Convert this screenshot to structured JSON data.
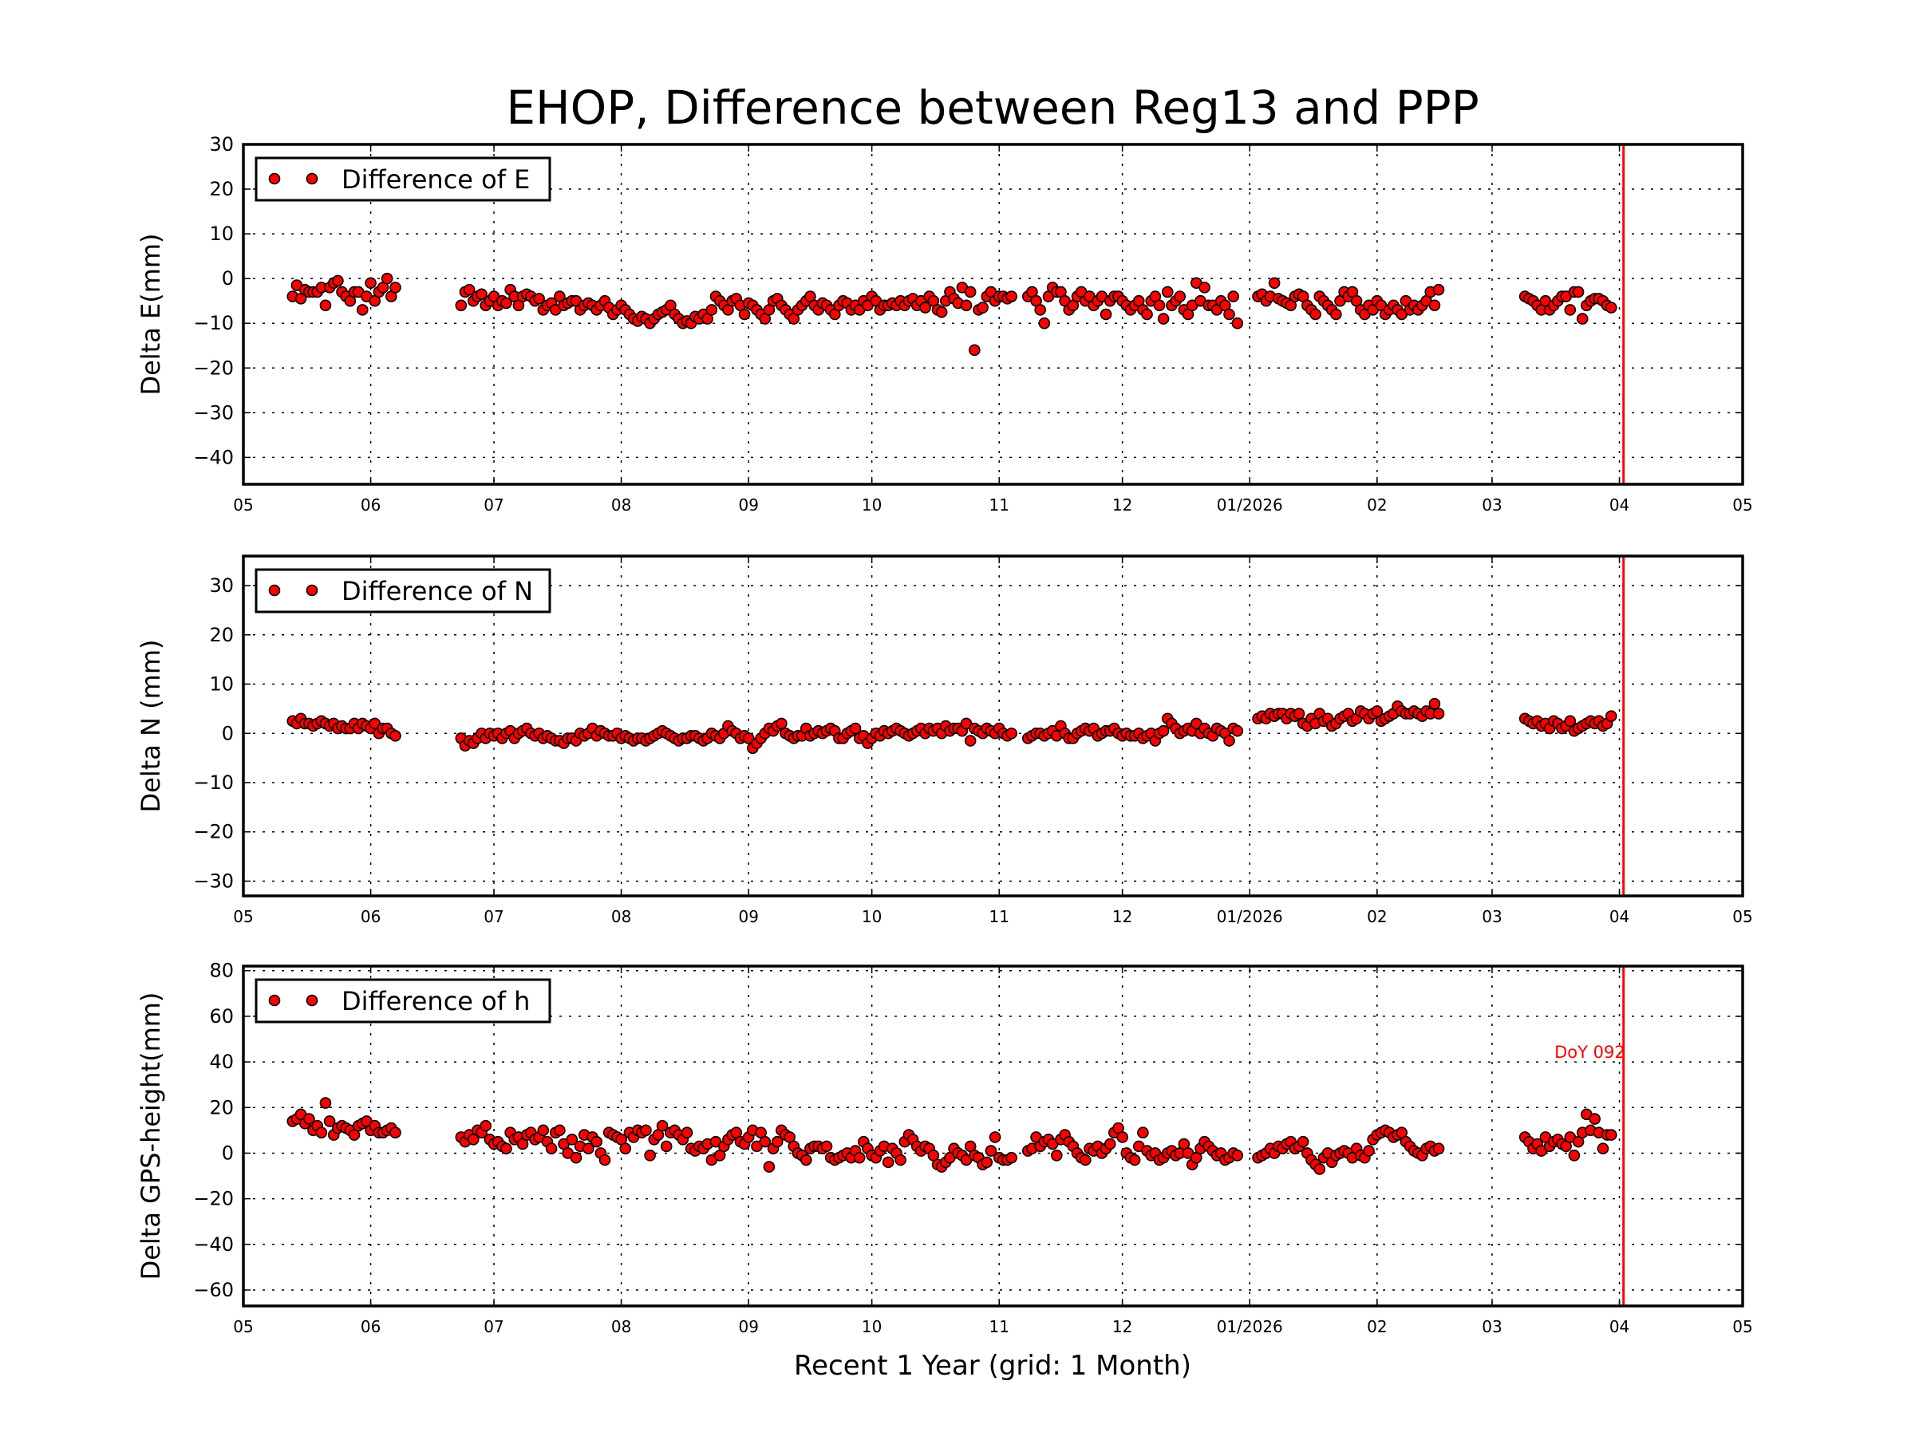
{
  "chart_data": {
    "title": "EHOP, Difference between Reg13 and PPP",
    "xlabel": "Recent 1 Year (grid: 1 Month)",
    "x_range": [
      "2025-05-01",
      "2026-05-01"
    ],
    "x_ticks": [
      {
        "date": "2025-05-01",
        "label": "05"
      },
      {
        "date": "2025-06-01",
        "label": "06"
      },
      {
        "date": "2025-07-01",
        "label": "07"
      },
      {
        "date": "2025-08-01",
        "label": "08"
      },
      {
        "date": "2025-09-01",
        "label": "09"
      },
      {
        "date": "2025-10-01",
        "label": "10"
      },
      {
        "date": "2025-11-01",
        "label": "11"
      },
      {
        "date": "2025-12-01",
        "label": "12"
      },
      {
        "date": "2026-01-01",
        "label": "01/2026"
      },
      {
        "date": "2026-02-01",
        "label": "02"
      },
      {
        "date": "2026-03-01",
        "label": "03"
      },
      {
        "date": "2026-04-01",
        "label": "04"
      },
      {
        "date": "2026-05-01",
        "label": "05"
      }
    ],
    "grid": true,
    "marker_color": "#ff0000",
    "marker_edge_color": "#000000",
    "reference_line": {
      "date": "2026-04-02",
      "color": "#ff0000",
      "label": "DoY 092"
    },
    "cadence": "daily",
    "segments": [
      {
        "start": "2025-05-13",
        "E": [
          -4,
          -1.5,
          -4.5,
          -2.5,
          -3,
          -3,
          -3,
          -2,
          -6,
          -2,
          -1,
          -0.5,
          -3,
          -4,
          -5,
          -3,
          -3,
          -7,
          -4,
          -1,
          -5,
          -3,
          -2,
          0,
          -4,
          -2
        ],
        "N": [
          2.5,
          2,
          3,
          2,
          2,
          1.5,
          2,
          2.5,
          2,
          1.5,
          2,
          1,
          1.5,
          1,
          1,
          2,
          1,
          2,
          1.5,
          1,
          2,
          0,
          1,
          1,
          0,
          -0.5
        ],
        "h": [
          14,
          15,
          17,
          13,
          15,
          10,
          12,
          9,
          22,
          14,
          8,
          11,
          12,
          11,
          10,
          8,
          12,
          13,
          14,
          10,
          12,
          9,
          9,
          10,
          11,
          9
        ]
      },
      {
        "start": "2025-06-23",
        "E": [
          -6,
          -3,
          -2.5,
          -5,
          -4,
          -3.5,
          -6,
          -5,
          -4,
          -6,
          -5,
          -5.5,
          -2.5,
          -4,
          -6,
          -4,
          -3.5,
          -4,
          -5,
          -4.5,
          -7,
          -6,
          -5.5,
          -7,
          -4,
          -6,
          -5.5,
          -5,
          -5,
          -7,
          -6,
          -5.5,
          -6,
          -7,
          -6,
          -5,
          -6.5,
          -8,
          -7,
          -6,
          -7,
          -8,
          -9,
          -9.5,
          -8.5,
          -9,
          -10,
          -9,
          -8,
          -7.5,
          -7,
          -6,
          -8,
          -9,
          -10,
          -9.5,
          -10,
          -8.5,
          -9,
          -8,
          -9,
          -7,
          -4,
          -5,
          -6,
          -7,
          -5,
          -4.5,
          -6,
          -8,
          -5.5,
          -6,
          -7,
          -8,
          -9,
          -7,
          -5,
          -4.5,
          -6,
          -7,
          -8,
          -9,
          -7,
          -6,
          -5,
          -4,
          -6,
          -7,
          -5.5,
          -6,
          -7,
          -8,
          -6,
          -5,
          -5.5,
          -7,
          -6,
          -7,
          -5,
          -6,
          -4,
          -5,
          -7,
          -6,
          -6,
          -5.5,
          -6,
          -5,
          -6,
          -5,
          -4.5,
          -6,
          -5,
          -6.5,
          -4,
          -5,
          -7,
          -7.5,
          -5,
          -3,
          -4.5,
          -5.5,
          -2,
          -6,
          -3,
          -16,
          -7,
          -6.5,
          -4,
          -3,
          -5,
          -4,
          -4,
          -4.5,
          -4
        ],
        "N": [
          -1,
          -2.5,
          -1.5,
          -2,
          -1,
          0,
          -1,
          0,
          -0.5,
          0,
          -1,
          0,
          0.5,
          -1,
          0,
          0.5,
          1,
          0,
          -0.5,
          0,
          -1,
          -0.5,
          -1,
          -1.5,
          -1.5,
          -2,
          -1,
          -1,
          -1.5,
          0,
          -0.5,
          0,
          1,
          -0.5,
          0.5,
          0,
          -0.5,
          -0.5,
          0,
          -1,
          -0.5,
          -1,
          -1.5,
          -1,
          -1,
          -1.5,
          -1,
          -0.5,
          0,
          0.5,
          0,
          -0.5,
          -1,
          -1.5,
          -1,
          -1,
          -0.5,
          -0.5,
          -1,
          -1.5,
          -1,
          0,
          -0.5,
          -1,
          0,
          1.5,
          0.5,
          0,
          -1,
          -0.5,
          -1,
          -3,
          -2,
          -1,
          0,
          1,
          0.5,
          1.5,
          2,
          0,
          -0.5,
          -1,
          -0.5,
          -0.5,
          1,
          -0.5,
          0,
          0.5,
          0,
          0.5,
          1,
          0.5,
          -1,
          -1,
          0,
          0.5,
          1,
          -1,
          -0.5,
          -2,
          -1,
          0,
          -0.5,
          0.5,
          0,
          0.5,
          1,
          0.5,
          0,
          -0.5,
          0,
          0.5,
          1,
          0,
          1,
          0.5,
          1,
          0,
          1.5,
          0.5,
          1,
          1,
          0.5,
          2,
          -1.5,
          1,
          0.5,
          0,
          1,
          0.5,
          0,
          1,
          0,
          -0.5,
          0
        ],
        "h": [
          7,
          5,
          8,
          6,
          10,
          9,
          12,
          6,
          4,
          5,
          3,
          2,
          9,
          6,
          7,
          4,
          8,
          9,
          6,
          7,
          10,
          5,
          2,
          9,
          10,
          4,
          0,
          6,
          -2,
          3,
          8,
          2,
          7,
          5,
          0,
          -3,
          9,
          8,
          7,
          6,
          2,
          9,
          7,
          10,
          9,
          10,
          -1,
          6,
          8,
          12,
          3,
          9,
          10,
          8,
          6,
          9,
          2,
          1,
          3,
          2,
          4,
          -3,
          5,
          -1,
          3,
          6,
          8,
          9,
          5,
          4,
          7,
          10,
          3,
          9,
          5,
          -6,
          2,
          5,
          10,
          8,
          7,
          3,
          0,
          -1,
          -3,
          2,
          3,
          3,
          2,
          3,
          -2,
          -3,
          -2,
          -1,
          0,
          -2,
          1,
          -2,
          5,
          2,
          -1,
          -2,
          1,
          3,
          -4,
          2,
          0,
          -3,
          5,
          8,
          6,
          3,
          1,
          3,
          2,
          -1,
          -5,
          -6,
          -4,
          -2,
          2,
          0,
          -1,
          -3,
          3,
          -1,
          -2,
          -5,
          -4,
          1,
          7,
          -2,
          -3,
          -3,
          -2
        ]
      },
      {
        "start": "2025-11-08",
        "E": [
          -4,
          -3,
          -5,
          -7,
          -10,
          -4,
          -2,
          -3,
          -3,
          -5,
          -7,
          -6,
          -4,
          -3,
          -5,
          -4,
          -6,
          -5,
          -4,
          -8,
          -5,
          -4,
          -4,
          -5,
          -6,
          -7,
          -6,
          -5,
          -7,
          -8,
          -5,
          -4,
          -6,
          -9,
          -3,
          -6,
          -5,
          -4,
          -7,
          -8,
          -6,
          -1,
          -5,
          -2,
          -6,
          -6,
          -7,
          -5,
          -6,
          -8,
          -4,
          -10
        ],
        "N": [
          -1,
          -0.5,
          0,
          0,
          -0.5,
          0,
          0.5,
          -0.5,
          1.5,
          0,
          -1,
          -1,
          0,
          0.5,
          1,
          0.5,
          1,
          -0.5,
          0,
          0.5,
          0.5,
          1,
          0,
          -0.5,
          0,
          -0.5,
          -0.5,
          0,
          -1,
          -0.5,
          0,
          -1.5,
          0,
          0.5,
          3,
          2,
          1,
          0,
          0.5,
          1,
          0.5,
          2,
          0,
          1,
          0,
          -0.5,
          1,
          0.5,
          0,
          -1.5,
          1,
          0.5
        ],
        "h": [
          1,
          2,
          7,
          3,
          5,
          6,
          4,
          -1,
          6,
          8,
          5,
          3,
          0,
          -2,
          -3,
          2,
          1,
          3,
          0,
          2,
          4,
          9,
          11,
          7,
          0,
          -2,
          -3,
          3,
          9,
          1,
          -1,
          0,
          -3,
          -2,
          0,
          1,
          -1,
          0,
          4,
          0,
          -5,
          -2,
          2,
          5,
          3,
          1,
          -1,
          0,
          -3,
          -2,
          0,
          -1
        ]
      },
      {
        "start": "2026-01-03",
        "E": [
          -4,
          -3.5,
          -5,
          -4,
          -1,
          -4.5,
          -5,
          -5.5,
          -6,
          -4,
          -3.5,
          -4,
          -6,
          -7,
          -8,
          -4,
          -5,
          -6,
          -7,
          -8,
          -5,
          -3,
          -4,
          -3,
          -5,
          -7,
          -8,
          -6,
          -7,
          -5,
          -6,
          -8,
          -7,
          -6,
          -7,
          -8,
          -5,
          -7,
          -6,
          -7,
          -6,
          -5,
          -3,
          -6,
          -2.5
        ],
        "N": [
          3,
          3.5,
          3,
          4,
          3.5,
          4,
          4,
          3,
          4,
          3.5,
          4,
          2,
          1.5,
          3,
          2,
          4,
          2.5,
          3,
          1.5,
          2,
          3,
          3.5,
          4,
          2.5,
          3,
          4.5,
          4,
          3,
          4,
          4.5,
          2.5,
          3,
          3.5,
          4,
          5.5,
          4.5,
          4,
          4,
          4.5,
          4,
          3.5,
          4.5,
          4,
          6,
          4
        ],
        "h": [
          -2,
          -1,
          0,
          2,
          0,
          3,
          2,
          4,
          5,
          2,
          3,
          5,
          0,
          -3,
          -5,
          -7,
          -2,
          0,
          -4,
          -1,
          0,
          1,
          0,
          -2,
          2,
          -1,
          -2,
          1,
          6,
          8,
          9,
          10,
          9,
          7,
          8,
          9,
          5,
          3,
          1,
          0,
          -1,
          2,
          3,
          1,
          2
        ]
      },
      {
        "start": "2026-03-09",
        "E": [
          -4,
          -4.5,
          -5,
          -6,
          -7,
          -5,
          -7,
          -6,
          -5,
          -4,
          -4,
          -7,
          -3,
          -3,
          -9,
          -6,
          -5,
          -4.5,
          -4.5,
          -5,
          -6,
          -6.5
        ],
        "N": [
          3,
          2.5,
          2,
          2.5,
          1.5,
          2,
          1,
          2.5,
          2,
          1,
          1.5,
          2.5,
          0.5,
          1,
          1.5,
          2,
          2.5,
          2,
          2.5,
          1.5,
          2,
          3.5
        ],
        "h": [
          7,
          5,
          2,
          4,
          1,
          7,
          3,
          5,
          6,
          4,
          3,
          7,
          -1,
          5,
          9,
          17,
          10,
          15,
          9,
          2,
          8,
          8
        ]
      }
    ],
    "panels": [
      {
        "key": "E",
        "ylabel": "Delta E(mm)",
        "legend": "Difference of E",
        "legend_position": "upper-left",
        "ylim": [
          -46,
          30
        ],
        "yticks": [
          -40,
          -30,
          -20,
          -10,
          0,
          10,
          20,
          30
        ],
        "annotate_reference": false
      },
      {
        "key": "N",
        "ylabel": "Delta N (mm)",
        "legend": "Difference of N",
        "legend_position": "upper-left",
        "ylim": [
          -33,
          36
        ],
        "yticks": [
          -30,
          -20,
          -10,
          0,
          10,
          20,
          30
        ],
        "annotate_reference": false
      },
      {
        "key": "h",
        "ylabel": "Delta GPS-height(mm)",
        "legend": "Difference of h",
        "legend_position": "upper-left",
        "ylim": [
          -67,
          82
        ],
        "yticks": [
          -60,
          -40,
          -20,
          0,
          20,
          40,
          60,
          80
        ],
        "annotate_reference": true
      }
    ]
  }
}
